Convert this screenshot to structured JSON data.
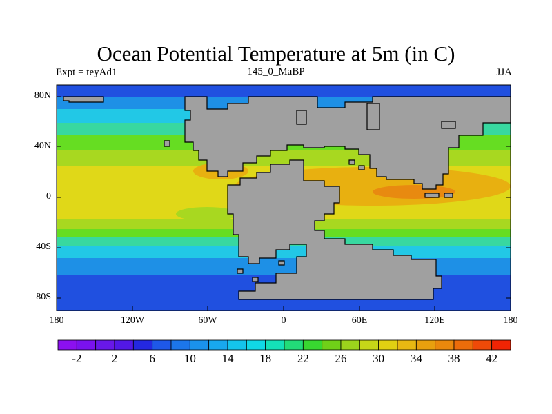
{
  "map": {
    "title": "Ocean Potential Temperature at 5m (in C)",
    "subtitle_left": "Expt = teyAd1",
    "subtitle_center": "145_0_MaBP",
    "subtitle_right": "JJA",
    "lat_labels": [
      "80N",
      "40N",
      "0",
      "40S",
      "80S"
    ],
    "lon_labels": [
      "180",
      "120W",
      "60W",
      "0",
      "60E",
      "120E",
      "180"
    ]
  },
  "colors": {
    "land": "#a0a0a0",
    "coast": "#000000",
    "ocean_bands": [
      "#2050e0",
      "#1e90e6",
      "#22c8e6",
      "#38d8a0",
      "#66dd22",
      "#a8d820",
      "#e0d818",
      "#e8b010",
      "#e88a10"
    ]
  },
  "colorbar": {
    "labels": [
      "-2",
      "2",
      "6",
      "10",
      "14",
      "18",
      "22",
      "26",
      "30",
      "34",
      "38",
      "42"
    ],
    "colors": [
      "#8c10f0",
      "#7a12ee",
      "#6818e8",
      "#5218e6",
      "#2428e0",
      "#1e58e8",
      "#1c76ea",
      "#1a92ec",
      "#18a8ee",
      "#14c4ec",
      "#10d8e6",
      "#14e0b8",
      "#22dc78",
      "#38d830",
      "#70d018",
      "#9cd41c",
      "#c6d618",
      "#e0d012",
      "#e8b812",
      "#e8a00e",
      "#ea880c",
      "#ec6c0a",
      "#ee4a08",
      "#f02404"
    ]
  }
}
